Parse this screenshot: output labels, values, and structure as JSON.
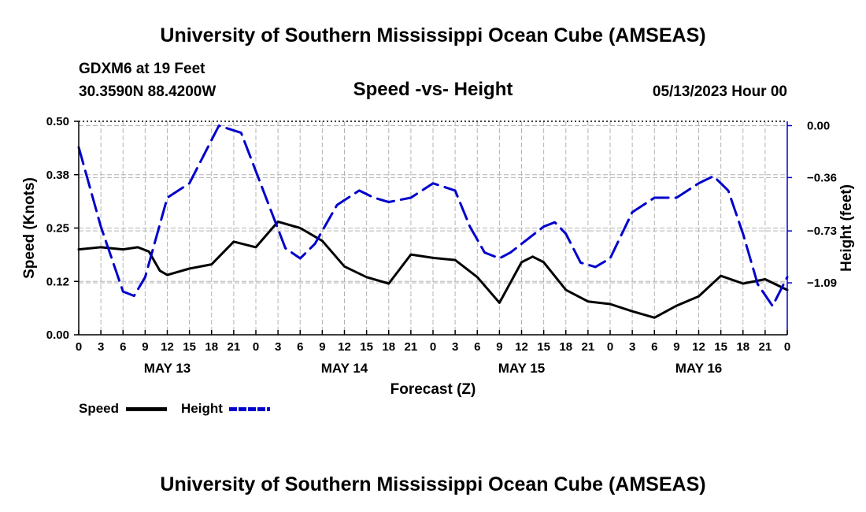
{
  "header": {
    "title": "University of Southern Mississippi Ocean Cube (AMSEAS)",
    "station": "GDXM6 at 19 Feet",
    "location": "30.3590N  88.4200W",
    "subtitle": "Speed -vs- Height",
    "datetime": "05/13/2023 Hour 00"
  },
  "footer": {
    "title": "University of Southern Mississippi Ocean Cube (AMSEAS)"
  },
  "legend": {
    "speed_label": "Speed",
    "height_label": "Height"
  },
  "chart_data": {
    "type": "line",
    "title": "Speed -vs- Height",
    "xlabel": "Forecast (Z)",
    "ylabel": "Speed (Knots)",
    "y2label": "Height (feet)",
    "xlim": [
      0,
      96
    ],
    "ylim": [
      0,
      0.5
    ],
    "y2lim": [
      -1.45,
      0.03
    ],
    "x_ticks": [
      0,
      3,
      6,
      9,
      12,
      15,
      18,
      21,
      24,
      27,
      30,
      33,
      36,
      39,
      42,
      45,
      48,
      51,
      54,
      57,
      60,
      63,
      66,
      69,
      72,
      75,
      78,
      81,
      84,
      87,
      90,
      93,
      96
    ],
    "x_tick_labels": [
      "0",
      "3",
      "6",
      "9",
      "12",
      "15",
      "18",
      "21",
      "0",
      "3",
      "6",
      "9",
      "12",
      "15",
      "18",
      "21",
      "0",
      "3",
      "6",
      "9",
      "12",
      "15",
      "18",
      "21",
      "0",
      "3",
      "6",
      "9",
      "12",
      "15",
      "18",
      "21",
      "0"
    ],
    "day_labels": [
      {
        "x": 12,
        "label": "MAY 13"
      },
      {
        "x": 36,
        "label": "MAY 14"
      },
      {
        "x": 60,
        "label": "MAY 15"
      },
      {
        "x": 84,
        "label": "MAY 16"
      }
    ],
    "y_ticks": [
      0,
      0.125,
      0.25,
      0.375,
      0.5
    ],
    "y_tick_labels": [
      "0.00",
      "0.12",
      "0.25",
      "0.38",
      "0.50"
    ],
    "y2_ticks": [
      0.0,
      -0.36,
      -0.73,
      -1.09
    ],
    "y2_tick_labels": [
      "0.00",
      "−0.36",
      "−0.73",
      "−1.09"
    ],
    "grid": true,
    "series": [
      {
        "name": "Speed",
        "axis": "left",
        "color": "#000000",
        "dash": "solid",
        "x": [
          0,
          3,
          6,
          8,
          9.5,
          11,
          12,
          15,
          18,
          21,
          24,
          27,
          30,
          33,
          36,
          39,
          42,
          45,
          48,
          51,
          54,
          57,
          60,
          61.5,
          63,
          66,
          69,
          72,
          75,
          78,
          81,
          84,
          87,
          90,
          93,
          96
        ],
        "y": [
          0.2,
          0.205,
          0.2,
          0.205,
          0.195,
          0.15,
          0.14,
          0.155,
          0.165,
          0.218,
          0.205,
          0.265,
          0.25,
          0.22,
          0.16,
          0.135,
          0.12,
          0.188,
          0.18,
          0.175,
          0.135,
          0.075,
          0.17,
          0.183,
          0.17,
          0.105,
          0.078,
          0.072,
          0.055,
          0.04,
          0.068,
          0.09,
          0.138,
          0.12,
          0.13,
          0.105
        ]
      },
      {
        "name": "Height",
        "axis": "right",
        "color": "#0000cc",
        "dash": "dashed",
        "x": [
          0,
          3,
          6,
          7.5,
          9,
          12,
          15,
          19,
          22,
          25,
          28,
          30,
          32,
          35,
          38,
          40,
          42,
          45,
          48,
          51,
          53,
          55,
          57,
          58.5,
          60,
          63,
          64.5,
          66,
          68,
          70,
          72,
          75,
          78,
          81,
          84,
          86,
          88,
          90,
          92,
          94,
          96
        ],
        "y": [
          -0.15,
          -0.7,
          -1.15,
          -1.18,
          -1.05,
          -0.5,
          -0.4,
          0.0,
          -0.05,
          -0.45,
          -0.85,
          -0.92,
          -0.82,
          -0.55,
          -0.45,
          -0.5,
          -0.53,
          -0.5,
          -0.4,
          -0.45,
          -0.7,
          -0.88,
          -0.92,
          -0.88,
          -0.82,
          -0.7,
          -0.67,
          -0.75,
          -0.95,
          -0.98,
          -0.92,
          -0.6,
          -0.5,
          -0.5,
          -0.4,
          -0.35,
          -0.45,
          -0.75,
          -1.1,
          -1.25,
          -1.05
        ]
      }
    ]
  }
}
